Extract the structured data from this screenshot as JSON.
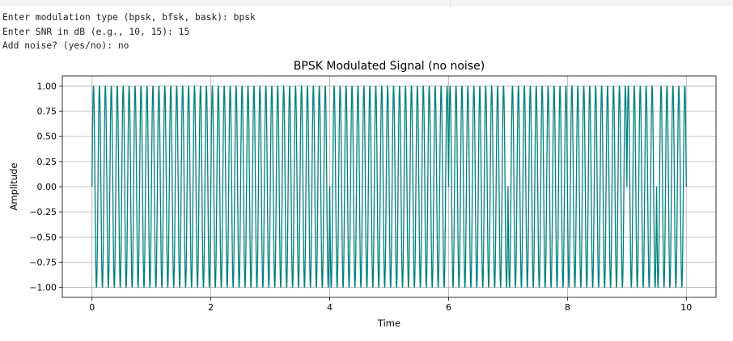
{
  "console": {
    "lines": [
      "Enter modulation type (bpsk, bfsk, bask): bpsk",
      "Enter SNR in dB (e.g., 10, 15): 15",
      "Add noise? (yes/no): no"
    ]
  },
  "chart_data": {
    "type": "line",
    "title": "BPSK Modulated Signal (no noise)",
    "xlabel": "Time",
    "ylabel": "Amplitude",
    "xlim": [
      -0.5,
      10.5
    ],
    "ylim": [
      -1.1,
      1.1
    ],
    "xticks": [
      "0",
      "2",
      "4",
      "6",
      "8",
      "10"
    ],
    "yticks": [
      "1.00",
      "0.75",
      "0.50",
      "0.25",
      "0.00",
      "−0.25",
      "−0.50",
      "−0.75",
      "−1.00"
    ],
    "series": [
      {
        "color": "#008080",
        "signal": "sin(2*pi*f*t + phase_k)",
        "carrier_frequency": 10,
        "duration": 10,
        "phase_flip_times": [
          4.0,
          6.0,
          7.0,
          9.0,
          9.5
        ]
      }
    ],
    "grid": true,
    "legend": "none"
  }
}
